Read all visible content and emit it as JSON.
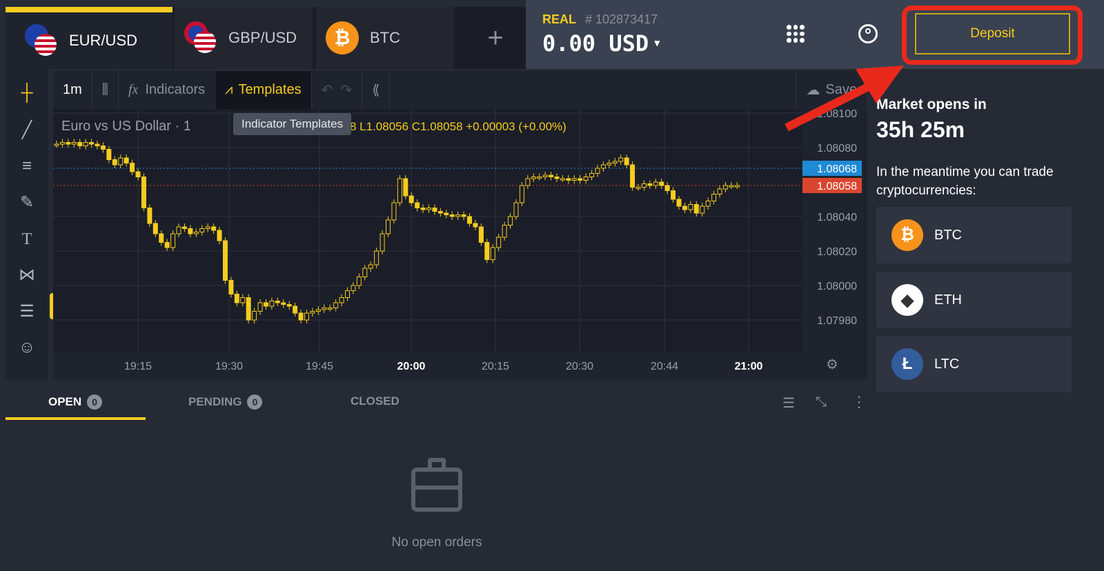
{
  "tabs": [
    {
      "label": "EUR/USD",
      "active": true
    },
    {
      "label": "GBP/USD"
    },
    {
      "label": "BTC"
    }
  ],
  "add_tab_icon": "plus-icon",
  "account": {
    "type": "REAL",
    "id": "# 102873417",
    "balance": "0.00 USD"
  },
  "deposit_label": "Deposit",
  "toolbar": {
    "interval": "1m",
    "indicators": "Indicators",
    "templates": "Templates",
    "save": "Save",
    "tooltip": "Indicator Templates"
  },
  "chart_header": {
    "symbol": "Euro vs US Dollar · 1",
    "ohlc": "8  L1.08056  C1.08058  +0.00003 (+0.00%)"
  },
  "colors": {
    "accent": "#f5cc1f",
    "candle": "#f5cc1f",
    "bid_line": "#1f8ad6",
    "ask_line": "#d9462f",
    "highlight": "#e8291c"
  },
  "chart_data": {
    "type": "candlestick",
    "interval": "1m",
    "y_ticks": [
      "1.08100",
      "1.08080",
      "1.08040",
      "1.08020",
      "1.08000",
      "1.07980"
    ],
    "x_ticks": [
      "19:15",
      "19:30",
      "19:45",
      "20:00",
      "20:15",
      "20:30",
      "20:44",
      "21:00"
    ],
    "price_labels": [
      {
        "value": "1.08068",
        "color": "#1f8ad6"
      },
      {
        "value": "1.08058",
        "color": "#d9462f"
      }
    ],
    "closes": [
      1.08082,
      1.08083,
      1.08082,
      1.08083,
      1.08081,
      1.08083,
      1.08082,
      1.08081,
      1.08079,
      1.08073,
      1.0807,
      1.08074,
      1.08071,
      1.08066,
      1.08063,
      1.08045,
      1.08036,
      1.0803,
      1.08025,
      1.08022,
      1.0803,
      1.08034,
      1.08033,
      1.0803,
      1.08031,
      1.08033,
      1.08034,
      1.08032,
      1.08026,
      1.08003,
      1.07995,
      1.0799,
      1.07993,
      1.0798,
      1.07985,
      1.0799,
      1.07988,
      1.07991,
      1.0799,
      1.07989,
      1.07988,
      1.07984,
      1.0798,
      1.07984,
      1.07985,
      1.07986,
      1.07987,
      1.07987,
      1.0799,
      1.07993,
      1.07997,
      1.08,
      1.08005,
      1.0801,
      1.08012,
      1.0802,
      1.0803,
      1.08038,
      1.08048,
      1.08062,
      1.08052,
      1.08048,
      1.08045,
      1.08044,
      1.08045,
      1.08043,
      1.08042,
      1.08041,
      1.0804,
      1.08041,
      1.0804,
      1.08036,
      1.08034,
      1.08025,
      1.08015,
      1.08022,
      1.08028,
      1.08035,
      1.0804,
      1.08048,
      1.08058,
      1.08062,
      1.08063,
      1.08063,
      1.08064,
      1.08063,
      1.08062,
      1.08062,
      1.08061,
      1.08062,
      1.08061,
      1.08063,
      1.08065,
      1.08068,
      1.0807,
      1.08071,
      1.08072,
      1.08074,
      1.0807,
      1.08057,
      1.08057,
      1.08059,
      1.08058,
      1.0806,
      1.08058,
      1.08055,
      1.0805,
      1.08046,
      1.08044,
      1.08047,
      1.08042,
      1.08046,
      1.08049,
      1.08053,
      1.08056,
      1.08058,
      1.08058,
      1.08058
    ]
  },
  "market": {
    "title": "Market opens in",
    "countdown": "35h 25m",
    "note": "In the meantime you can trade cryptocurrencies:"
  },
  "cryptos": [
    {
      "label": "BTC",
      "color": "#f7931a",
      "glyph": "₿"
    },
    {
      "label": "ETH",
      "color": "#ffffff",
      "glyph": "◆"
    },
    {
      "label": "LTC",
      "color": "#345d9d",
      "glyph": "Ł"
    }
  ],
  "orders": {
    "tabs": [
      {
        "label": "OPEN",
        "count": "0"
      },
      {
        "label": "PENDING",
        "count": "0"
      },
      {
        "label": "CLOSED"
      }
    ],
    "empty": "No open orders"
  }
}
